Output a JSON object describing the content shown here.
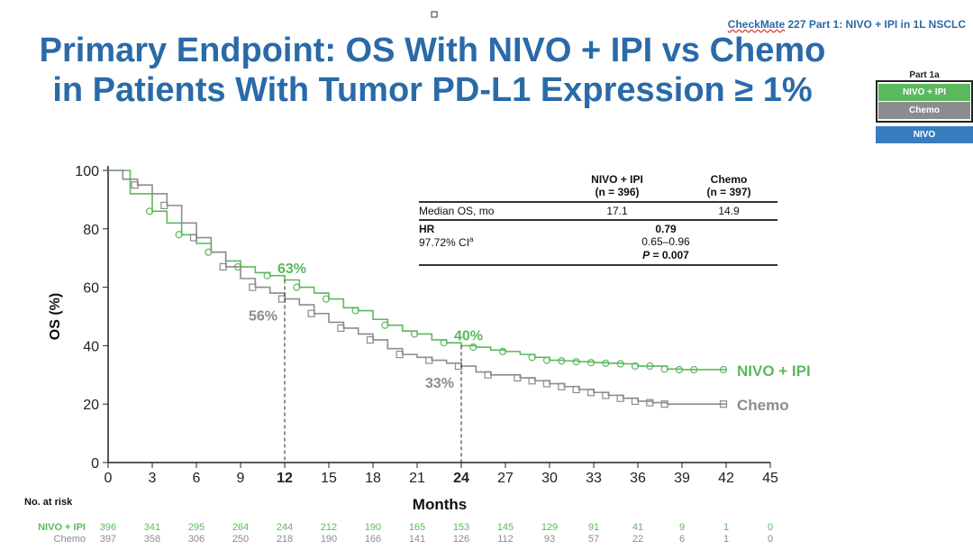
{
  "header": {
    "study": "CheckMate 227 Part 1: NIVO + IPI in 1L NSCLC",
    "study_underlined": "CheckMate",
    "title_line1": "Primary Endpoint: OS With NIVO + IPI vs Chemo",
    "title_line2": "in Patients With Tumor PD-L1 Expression ≥ 1%"
  },
  "part_legend": {
    "title": "Part 1a",
    "items": [
      {
        "label": "NIVO + IPI",
        "color": "#5cb85c"
      },
      {
        "label": "Chemo",
        "color": "#8c8c8c"
      },
      {
        "label": "NIVO",
        "color": "#3a7dbf"
      }
    ]
  },
  "stats_table": {
    "col1": "NIVO + IPI",
    "col1_n": "(n = 396)",
    "col2": "Chemo",
    "col2_n": "(n = 397)",
    "median_label": "Median OS, mo",
    "median1": "17.1",
    "median2": "14.9",
    "hr_label": "HR",
    "hr": "0.79",
    "ci_label": "97.72% CI",
    "ci_sup": "a",
    "ci": "0.65–0.96",
    "p_label": "P",
    "p": " = 0.007"
  },
  "chart_data": {
    "type": "line",
    "xlabel": "Months",
    "ylabel": "OS (%)",
    "xlim": [
      0,
      45
    ],
    "ylim": [
      0,
      100
    ],
    "xticks": [
      0,
      3,
      6,
      9,
      12,
      15,
      18,
      21,
      24,
      27,
      30,
      33,
      36,
      39,
      42,
      45
    ],
    "yticks": [
      0,
      20,
      40,
      60,
      80,
      100
    ],
    "bold_xticks": [
      12,
      24
    ],
    "series": [
      {
        "name": "NIVO + IPI",
        "color": "#5cb85c",
        "marker": "circle",
        "x": [
          0,
          1.5,
          3,
          4,
          5,
          6,
          7,
          8,
          9,
          10,
          11,
          12,
          13,
          14,
          15,
          16,
          17,
          18,
          19,
          20,
          21,
          22,
          23,
          24,
          25,
          26,
          27,
          28,
          29,
          30,
          31,
          32,
          33,
          34,
          35,
          36,
          37,
          38,
          39,
          40,
          42
        ],
        "y": [
          100,
          92,
          86,
          82,
          78,
          75,
          72,
          69,
          67,
          65,
          64,
          62.5,
          60,
          58,
          56,
          53,
          52,
          49,
          47,
          45,
          44,
          42,
          41,
          40,
          39.5,
          38.5,
          38,
          37,
          36,
          35,
          34.8,
          34.5,
          34.2,
          34,
          33.8,
          33,
          33,
          32,
          31.8,
          31.8,
          31.8
        ]
      },
      {
        "name": "Chemo",
        "color": "#8c8c8c",
        "marker": "square",
        "x": [
          0,
          1,
          2,
          3,
          4,
          5,
          6,
          7,
          8,
          9,
          10,
          11,
          12,
          13,
          14,
          15,
          16,
          17,
          18,
          19,
          20,
          21,
          22,
          23,
          24,
          25,
          26,
          27,
          28,
          29,
          30,
          31,
          32,
          33,
          34,
          35,
          36,
          37,
          38,
          42
        ],
        "y": [
          100,
          97,
          95,
          92,
          88,
          82,
          77,
          72,
          67,
          63,
          60,
          58,
          56,
          54,
          51,
          48,
          46,
          44,
          42,
          39,
          37,
          36,
          35,
          34,
          33,
          31,
          30,
          30,
          29,
          28,
          27,
          26,
          25,
          24,
          23,
          22,
          21,
          20.5,
          20,
          20
        ]
      }
    ],
    "annotations": [
      {
        "text": "63%",
        "x": 12,
        "y": 63,
        "series": "NIVO + IPI"
      },
      {
        "text": "56%",
        "x": 12,
        "y": 56,
        "series": "Chemo"
      },
      {
        "text": "40%",
        "x": 24,
        "y": 40,
        "series": "NIVO + IPI"
      },
      {
        "text": "33%",
        "x": 24,
        "y": 33,
        "series": "Chemo"
      }
    ],
    "reference_lines_x": [
      12,
      24
    ]
  },
  "at_risk": {
    "title": "No. at risk",
    "rows": [
      {
        "label": "NIVO + IPI",
        "color": "#5cb85c",
        "values": [
          "396",
          "341",
          "295",
          "264",
          "244",
          "212",
          "190",
          "165",
          "153",
          "145",
          "129",
          "91",
          "41",
          "9",
          "1",
          "0"
        ]
      },
      {
        "label": "Chemo",
        "color": "#8c8c8c",
        "values": [
          "397",
          "358",
          "306",
          "250",
          "218",
          "190",
          "166",
          "141",
          "126",
          "112",
          "93",
          "57",
          "22",
          "6",
          "1",
          "0"
        ]
      }
    ]
  }
}
